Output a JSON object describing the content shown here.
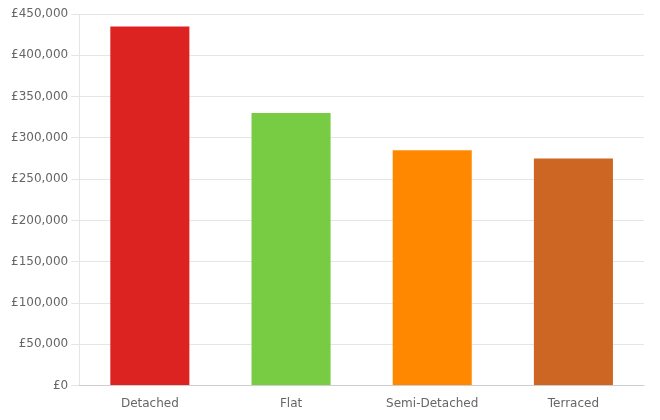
{
  "chart_data": {
    "type": "bar",
    "categories": [
      "Detached",
      "Flat",
      "Semi-Detached",
      "Terraced"
    ],
    "values": [
      435000,
      330000,
      285000,
      275000
    ],
    "colors": [
      "#dd2222",
      "#77cc44",
      "#ff8800",
      "#cc6622"
    ],
    "ylim": [
      0,
      450000
    ],
    "yticks": [
      {
        "value": 0,
        "label": "£0"
      },
      {
        "value": 50000,
        "label": "£50,000"
      },
      {
        "value": 100000,
        "label": "£100,000"
      },
      {
        "value": 150000,
        "label": "£150,000"
      },
      {
        "value": 200000,
        "label": "£200,000"
      },
      {
        "value": 250000,
        "label": "£250,000"
      },
      {
        "value": 300000,
        "label": "£300,000"
      },
      {
        "value": 350000,
        "label": "£350,000"
      },
      {
        "value": 400000,
        "label": "£400,000"
      },
      {
        "value": 450000,
        "label": "£450,000"
      }
    ],
    "grid": true
  }
}
